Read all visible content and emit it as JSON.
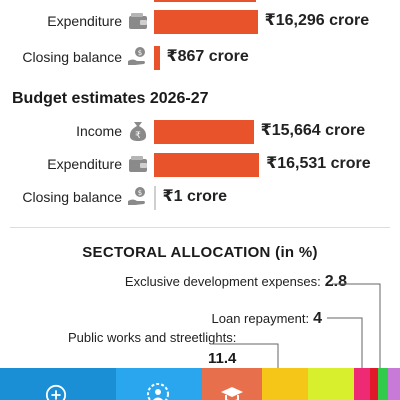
{
  "revised": {
    "rows": [
      {
        "label": "Expenditure",
        "icon": "wallet-icon",
        "value": 16296,
        "display": "₹16,296 crore"
      },
      {
        "label": "Closing balance",
        "icon": "hand-money-icon",
        "value": 867,
        "display": "₹867 crore"
      }
    ]
  },
  "estimates": {
    "title": "Budget estimates 2026-27",
    "rows": [
      {
        "label": "Income",
        "icon": "money-bag-icon",
        "value": 15664,
        "display": "₹15,664 crore"
      },
      {
        "label": "Expenditure",
        "icon": "wallet-icon",
        "value": 16531,
        "display": "₹16,531 crore"
      },
      {
        "label": "Closing balance",
        "icon": "hand-money-icon",
        "value": 1,
        "display": "₹1 crore"
      }
    ]
  },
  "sectoral": {
    "title": "SECTORAL ALLOCATION (in %)",
    "items": [
      {
        "label": "Exclusive development expenses:",
        "value": "2.8"
      },
      {
        "label": "Loan repayment:",
        "value": "4"
      },
      {
        "label": "Public works and streetlights:",
        "value": "11.4"
      }
    ]
  },
  "chart_data": [
    {
      "type": "bar",
      "categories": [
        "Expenditure",
        "Closing balance"
      ],
      "values": [
        16296,
        867
      ],
      "ylabel": "₹ crore"
    },
    {
      "type": "bar",
      "title": "Budget estimates 2026-27",
      "categories": [
        "Income",
        "Expenditure",
        "Closing balance"
      ],
      "values": [
        15664,
        16531,
        1
      ],
      "ylabel": "₹ crore"
    },
    {
      "type": "bar",
      "title": "SECTORAL ALLOCATION (in %)",
      "categories": [
        "Exclusive development expenses",
        "Loan repayment",
        "Public works and streetlights"
      ],
      "values": [
        2.8,
        4,
        11.4
      ]
    }
  ],
  "colors": {
    "bar": "#e8532b",
    "strip": [
      "#1a8fd6",
      "#2aa6ee",
      "#e86f4c",
      "#f5c518",
      "#d8ef2e",
      "#ee2a74",
      "#e0182a",
      "#33cc4a",
      "#c77ad8"
    ]
  }
}
